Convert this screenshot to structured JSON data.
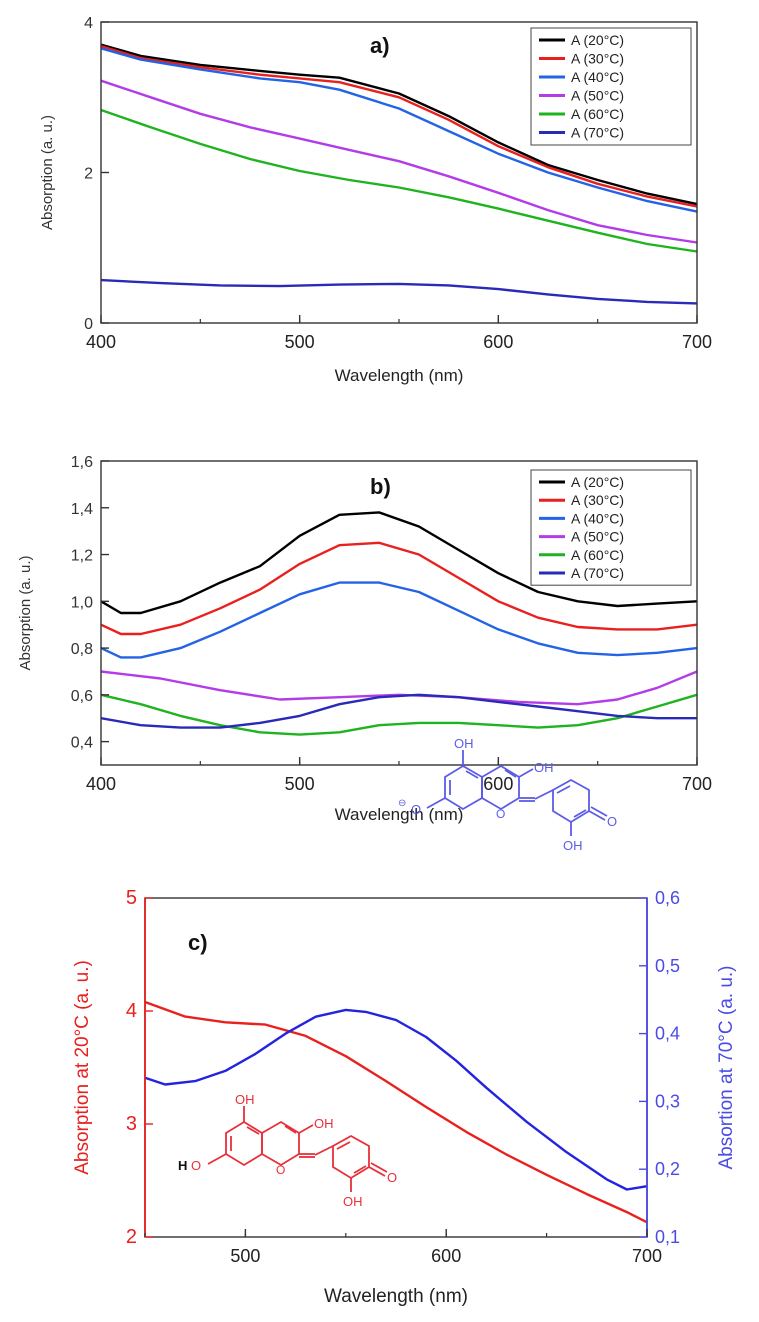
{
  "chart_data": [
    {
      "type": "line",
      "panel_label": "a)",
      "xlabel": "Wavelength (nm)",
      "ylabel": "Absorption (a. u.)",
      "xlim": [
        400,
        700
      ],
      "ylim": [
        0,
        4
      ],
      "xticks": [
        "400",
        "500",
        "600",
        "700"
      ],
      "yticks": [
        "0",
        "2",
        "4"
      ],
      "legend_position": "top-right",
      "series": [
        {
          "name": "A (20°C)",
          "color": "#000000",
          "x": [
            400,
            420,
            450,
            480,
            500,
            520,
            550,
            575,
            600,
            625,
            650,
            675,
            700
          ],
          "y": [
            3.7,
            3.55,
            3.43,
            3.35,
            3.3,
            3.26,
            3.05,
            2.75,
            2.4,
            2.1,
            1.9,
            1.72,
            1.58
          ]
        },
        {
          "name": "A (30°C)",
          "color": "#e8211f",
          "x": [
            400,
            420,
            450,
            480,
            500,
            520,
            550,
            575,
            600,
            625,
            650,
            675,
            700
          ],
          "y": [
            3.68,
            3.52,
            3.4,
            3.3,
            3.25,
            3.2,
            3.0,
            2.7,
            2.35,
            2.07,
            1.85,
            1.68,
            1.55
          ]
        },
        {
          "name": "A (40°C)",
          "color": "#2363e6",
          "x": [
            400,
            420,
            450,
            480,
            500,
            520,
            550,
            575,
            600,
            625,
            650,
            675,
            700
          ],
          "y": [
            3.65,
            3.5,
            3.37,
            3.25,
            3.2,
            3.1,
            2.85,
            2.55,
            2.25,
            2.0,
            1.8,
            1.62,
            1.48
          ]
        },
        {
          "name": "A (50°C)",
          "color": "#b23de8",
          "x": [
            400,
            425,
            450,
            475,
            500,
            525,
            550,
            575,
            600,
            625,
            650,
            675,
            700
          ],
          "y": [
            3.22,
            3.0,
            2.78,
            2.6,
            2.45,
            2.3,
            2.15,
            1.95,
            1.73,
            1.5,
            1.3,
            1.17,
            1.07
          ]
        },
        {
          "name": "A (60°C)",
          "color": "#1fb31f",
          "x": [
            400,
            425,
            450,
            475,
            500,
            525,
            550,
            575,
            600,
            625,
            650,
            675,
            700
          ],
          "y": [
            2.83,
            2.6,
            2.38,
            2.18,
            2.02,
            1.9,
            1.8,
            1.67,
            1.52,
            1.36,
            1.2,
            1.05,
            0.95
          ]
        },
        {
          "name": "A (70°C)",
          "color": "#2a2ab8",
          "x": [
            400,
            430,
            460,
            490,
            520,
            550,
            575,
            600,
            625,
            650,
            675,
            700
          ],
          "y": [
            0.57,
            0.53,
            0.5,
            0.49,
            0.51,
            0.52,
            0.5,
            0.45,
            0.38,
            0.32,
            0.28,
            0.26
          ]
        }
      ]
    },
    {
      "type": "line",
      "panel_label": "b)",
      "xlabel": "Wavelength (nm)",
      "ylabel": "Absorption (a. u.)",
      "xlim": [
        400,
        700
      ],
      "ylim": [
        0.3,
        1.6
      ],
      "xticks": [
        "400",
        "500",
        "600",
        "700"
      ],
      "yticks": [
        "0,4",
        "0,6",
        "0,8",
        "1,0",
        "1,2",
        "1,4",
        "1,6"
      ],
      "legend_position": "top-right",
      "series": [
        {
          "name": "A (20°C)",
          "color": "#000000",
          "x": [
            400,
            410,
            420,
            440,
            460,
            480,
            500,
            520,
            540,
            560,
            580,
            600,
            620,
            640,
            660,
            680,
            700
          ],
          "y": [
            1.0,
            0.95,
            0.95,
            1.0,
            1.08,
            1.15,
            1.28,
            1.37,
            1.38,
            1.32,
            1.22,
            1.12,
            1.04,
            1.0,
            0.98,
            0.99,
            1.0
          ]
        },
        {
          "name": "A (30°C)",
          "color": "#e8211f",
          "x": [
            400,
            410,
            420,
            440,
            460,
            480,
            500,
            520,
            540,
            560,
            580,
            600,
            620,
            640,
            660,
            680,
            700
          ],
          "y": [
            0.9,
            0.86,
            0.86,
            0.9,
            0.97,
            1.05,
            1.16,
            1.24,
            1.25,
            1.2,
            1.1,
            1.0,
            0.93,
            0.89,
            0.88,
            0.88,
            0.9
          ]
        },
        {
          "name": "A (40°C)",
          "color": "#2363e6",
          "x": [
            400,
            410,
            420,
            440,
            460,
            480,
            500,
            520,
            540,
            560,
            580,
            600,
            620,
            640,
            660,
            680,
            700
          ],
          "y": [
            0.8,
            0.76,
            0.76,
            0.8,
            0.87,
            0.95,
            1.03,
            1.08,
            1.08,
            1.04,
            0.96,
            0.88,
            0.82,
            0.78,
            0.77,
            0.78,
            0.8
          ]
        },
        {
          "name": "A (50°C)",
          "color": "#b23de8",
          "x": [
            400,
            430,
            460,
            490,
            520,
            550,
            580,
            610,
            640,
            660,
            680,
            700
          ],
          "y": [
            0.7,
            0.67,
            0.62,
            0.58,
            0.59,
            0.6,
            0.59,
            0.57,
            0.56,
            0.58,
            0.63,
            0.7
          ]
        },
        {
          "name": "A (60°C)",
          "color": "#1fb31f",
          "x": [
            400,
            420,
            440,
            460,
            480,
            500,
            520,
            540,
            560,
            580,
            600,
            620,
            640,
            660,
            680,
            700
          ],
          "y": [
            0.6,
            0.56,
            0.51,
            0.47,
            0.44,
            0.43,
            0.44,
            0.47,
            0.48,
            0.48,
            0.47,
            0.46,
            0.47,
            0.5,
            0.55,
            0.6
          ]
        },
        {
          "name": "A (70°C)",
          "color": "#2a2ab8",
          "x": [
            400,
            420,
            440,
            460,
            480,
            500,
            520,
            540,
            560,
            580,
            600,
            620,
            640,
            660,
            680,
            700
          ],
          "y": [
            0.5,
            0.47,
            0.46,
            0.46,
            0.48,
            0.51,
            0.56,
            0.59,
            0.6,
            0.59,
            0.57,
            0.55,
            0.53,
            0.51,
            0.5,
            0.5
          ]
        }
      ]
    },
    {
      "type": "line",
      "panel_label": "c)",
      "xlabel": "Wavelength (nm)",
      "ylabel": "Absorption at 20°C (a. u.)",
      "ylabel_right": "Absortion at 70°C (a. u.)",
      "xlim": [
        450,
        700
      ],
      "ylim": [
        2,
        5
      ],
      "ylim_right": [
        0.1,
        0.6
      ],
      "xticks": [
        "500",
        "600",
        "700"
      ],
      "yticks": [
        "2",
        "3",
        "4",
        "5"
      ],
      "yticks_right": [
        "0,1",
        "0,2",
        "0,3",
        "0,4",
        "0,5",
        "0,6"
      ],
      "series": [
        {
          "name": "Absorption at 20°C",
          "axis": "left",
          "color": "#e8211f",
          "x": [
            450,
            470,
            490,
            510,
            530,
            550,
            570,
            590,
            610,
            630,
            650,
            670,
            690,
            700
          ],
          "y": [
            4.08,
            3.95,
            3.9,
            3.88,
            3.78,
            3.6,
            3.38,
            3.15,
            2.93,
            2.73,
            2.55,
            2.38,
            2.22,
            2.13
          ]
        },
        {
          "name": "Absortion at 70°C",
          "axis": "right",
          "color": "#2323e0",
          "x": [
            450,
            460,
            475,
            490,
            505,
            520,
            535,
            550,
            560,
            575,
            590,
            605,
            620,
            640,
            660,
            680,
            690,
            700
          ],
          "y": [
            0.335,
            0.325,
            0.33,
            0.345,
            0.37,
            0.4,
            0.425,
            0.435,
            0.432,
            0.42,
            0.395,
            0.36,
            0.32,
            0.27,
            0.225,
            0.185,
            0.17,
            0.175
          ]
        }
      ]
    }
  ],
  "structures": {
    "blue": {
      "oh_top": "OH",
      "oh_right": "OH",
      "oh_bottom": "OH",
      "charge": "⊖",
      "left_o": "O",
      "ring_o": "O",
      "keto_o": "O"
    },
    "red": {
      "oh_top": "OH",
      "oh_right": "OH",
      "oh_bottom": "OH",
      "h_left": "H",
      "left_o": "O",
      "ring_o": "O",
      "keto_o": "O"
    }
  }
}
